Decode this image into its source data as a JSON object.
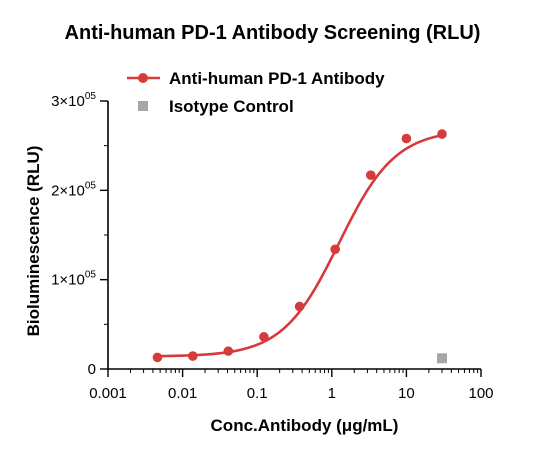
{
  "chart_data": {
    "type": "scatter",
    "title": "Anti-human PD-1 Antibody Screening (RLU)",
    "xlabel": "Conc.Antibody (μg/mL)",
    "ylabel": "Bioluminescence (RLU)",
    "xscale": "log",
    "xlim": [
      0.001,
      100
    ],
    "ylim": [
      0,
      300000
    ],
    "grid": false,
    "legend_position": "top-left",
    "x_ticks": [
      {
        "value": 0.001,
        "label": "0.001"
      },
      {
        "value": 0.01,
        "label": "0.01"
      },
      {
        "value": 0.1,
        "label": "0.1"
      },
      {
        "value": 1,
        "label": "1"
      },
      {
        "value": 10,
        "label": "10"
      },
      {
        "value": 100,
        "label": "100"
      }
    ],
    "y_ticks": [
      {
        "value": 0,
        "base": "0",
        "exp": ""
      },
      {
        "value": 100000,
        "base": "1×10",
        "exp": "05"
      },
      {
        "value": 200000,
        "base": "2×10",
        "exp": "05"
      },
      {
        "value": 300000,
        "base": "3×10",
        "exp": "05"
      }
    ],
    "series": [
      {
        "name": "Anti-human PD-1 Antibody",
        "color": "#d63a3a",
        "marker": "circle",
        "fit": "sigmoidal",
        "x": [
          0.0046,
          0.0137,
          0.041,
          0.123,
          0.37,
          1.11,
          3.33,
          10,
          30
        ],
        "y": [
          13000,
          14500,
          20000,
          36000,
          70000,
          134000,
          217000,
          258000,
          263000
        ]
      },
      {
        "name": "Isotype Control",
        "color": "#a6a6a6",
        "marker": "square",
        "x": [
          30
        ],
        "y": [
          12000
        ]
      }
    ]
  }
}
